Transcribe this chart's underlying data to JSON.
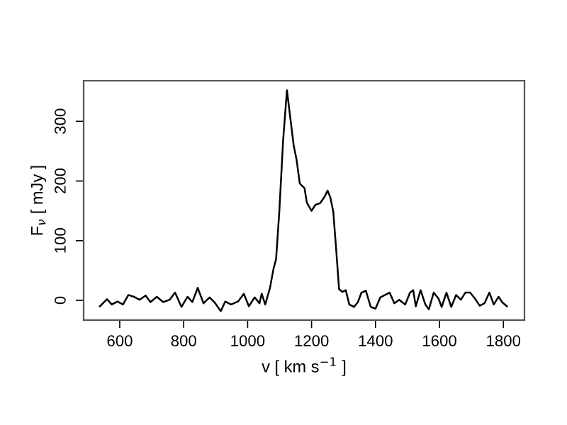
{
  "chart_data": {
    "type": "line",
    "xlabel": "v [ km s$^{−1}$ ]",
    "ylabel": "F$_{ν}$ [ mJy ]",
    "color": "#000000",
    "x": [
      538,
      560,
      575,
      593,
      610,
      627,
      644,
      662,
      681,
      696,
      716,
      736,
      756,
      773,
      793,
      812,
      827,
      844,
      862,
      881,
      896,
      916,
      930,
      948,
      970,
      988,
      1004,
      1022,
      1037,
      1044,
      1055,
      1070,
      1081,
      1089,
      1099,
      1111,
      1123,
      1133,
      1144,
      1153,
      1163,
      1170,
      1178,
      1185,
      1200,
      1212,
      1227,
      1241,
      1250,
      1259,
      1268,
      1277,
      1286,
      1296,
      1307,
      1318,
      1333,
      1345,
      1356,
      1370,
      1385,
      1400,
      1415,
      1430,
      1444,
      1459,
      1474,
      1493,
      1508,
      1518,
      1526,
      1541,
      1556,
      1567,
      1582,
      1597,
      1607,
      1622,
      1637,
      1652,
      1667,
      1681,
      1696,
      1711,
      1726,
      1741,
      1756,
      1770,
      1785,
      1796,
      1811
    ],
    "values": [
      -10,
      2,
      -7,
      -2,
      -7,
      9,
      6,
      1,
      8,
      -3,
      6,
      -3,
      1,
      13,
      -11,
      6,
      -3,
      21,
      -5,
      5,
      -3,
      -18,
      -2,
      -7,
      -2,
      11,
      -10,
      5,
      -5,
      11,
      -7,
      21,
      53,
      69,
      148,
      268,
      352,
      308,
      260,
      236,
      196,
      192,
      188,
      164,
      150,
      160,
      163,
      174,
      184,
      172,
      148,
      85,
      19,
      14,
      17,
      -7,
      -11,
      -3,
      13,
      16,
      -11,
      -14,
      5,
      9,
      13,
      -5,
      1,
      -7,
      13,
      17,
      -10,
      17,
      -7,
      -15,
      13,
      3,
      -11,
      13,
      -11,
      9,
      1,
      13,
      13,
      3,
      -9,
      -5,
      13,
      -7,
      6,
      -3,
      -10
    ],
    "xlim": [
      487,
      1866
    ],
    "ylim": [
      -33,
      368
    ],
    "xticks": [
      600,
      800,
      1000,
      1200,
      1400,
      1600,
      1800
    ],
    "yticks": [
      0,
      100,
      200,
      300
    ],
    "grid": false,
    "legend": false
  }
}
